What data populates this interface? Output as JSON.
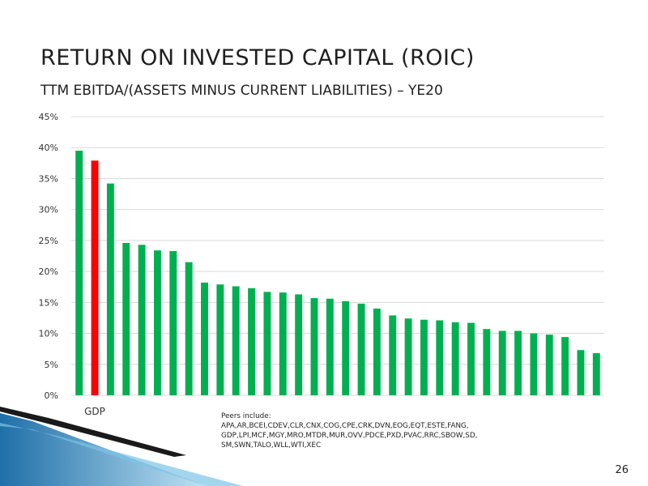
{
  "slide": {
    "title": "RETURN ON INVESTED CAPITAL (ROIC)",
    "subtitle": "TTM EBITDA/(ASSETS MINUS CURRENT LIABILITIES) – YE20",
    "page_number": "26",
    "peers_note": {
      "heading": "Peers include:",
      "lines": [
        "APA,AR,BCEI,CDEV,CLR,CNX,COG,CPE,CRK,DVN,EOG,EQT,ESTE,FANG,",
        "GDP,LPI,MCF,MGY,MRO,MTDR,MUR,OVV,PDCE,PXD,PVAC,RRC,SBOW,SD,",
        "SM,SWN,TALO,WLL,WTI,XEC"
      ]
    }
  },
  "chart_data": {
    "type": "bar",
    "title": "",
    "xlabel": "",
    "ylabel": "",
    "ylim": [
      0,
      0.45
    ],
    "yticks": [
      0,
      0.05,
      0.1,
      0.15,
      0.2,
      0.25,
      0.3,
      0.35,
      0.4,
      0.45
    ],
    "ytick_labels": [
      "0%",
      "5%",
      "10%",
      "15%",
      "20%",
      "25%",
      "30%",
      "35%",
      "40%",
      "45%"
    ],
    "grid": true,
    "legend": "none",
    "categories": [
      "",
      "GDP",
      "",
      "",
      "",
      "",
      "",
      "",
      "",
      "",
      "",
      "",
      "",
      "",
      "",
      "",
      "",
      "",
      "",
      "",
      "",
      "",
      "",
      "",
      "",
      "",
      "",
      "",
      "",
      "",
      "",
      "",
      "",
      ""
    ],
    "values": [
      0.395,
      0.379,
      0.342,
      0.246,
      0.243,
      0.234,
      0.233,
      0.215,
      0.182,
      0.179,
      0.176,
      0.173,
      0.167,
      0.166,
      0.163,
      0.157,
      0.156,
      0.152,
      0.148,
      0.14,
      0.129,
      0.124,
      0.122,
      0.121,
      0.118,
      0.117,
      0.107,
      0.104,
      0.104,
      0.1,
      0.098,
      0.094,
      0.073,
      0.068
    ],
    "highlight_index": 1,
    "colors": {
      "bar": "#00b050",
      "highlight": "#ff0000",
      "grid": "#d9d9d9"
    }
  }
}
